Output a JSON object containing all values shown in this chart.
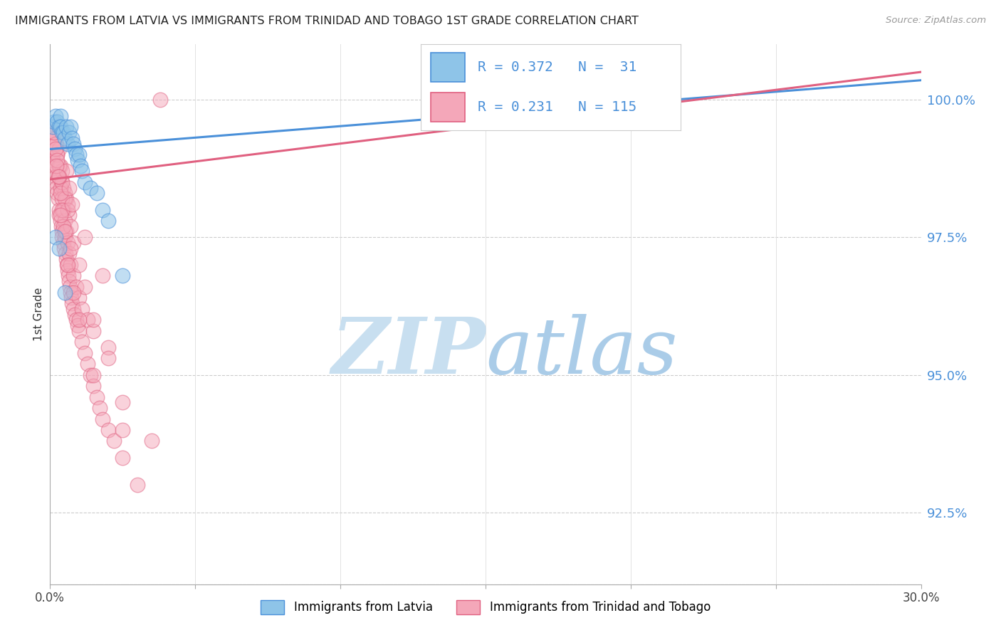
{
  "title": "IMMIGRANTS FROM LATVIA VS IMMIGRANTS FROM TRINIDAD AND TOBAGO 1ST GRADE CORRELATION CHART",
  "source": "Source: ZipAtlas.com",
  "ylabel": "1st Grade",
  "ylabel_values": [
    92.5,
    95.0,
    97.5,
    100.0
  ],
  "xmin": 0.0,
  "xmax": 30.0,
  "ymin": 91.2,
  "ymax": 101.0,
  "legend_label1": "Immigrants from Latvia",
  "legend_label2": "Immigrants from Trinidad and Tobago",
  "R1": 0.372,
  "N1": 31,
  "R2": 0.231,
  "N2": 115,
  "color_blue": "#8ec4e8",
  "color_pink": "#f4a7b9",
  "color_blue_line": "#4a90d9",
  "color_pink_line": "#e06080",
  "color_blue_text": "#4a90d9",
  "watermark_zip_color": "#c8dff0",
  "watermark_atlas_color": "#aacce8",
  "lv_line_x0": 0.0,
  "lv_line_y0": 99.1,
  "lv_line_x1": 30.0,
  "lv_line_y1": 100.35,
  "tt_line_x0": 0.0,
  "tt_line_y0": 98.55,
  "tt_line_x1": 30.0,
  "tt_line_y1": 100.5,
  "latvia_x": [
    0.1,
    0.15,
    0.2,
    0.25,
    0.3,
    0.35,
    0.35,
    0.4,
    0.45,
    0.5,
    0.55,
    0.6,
    0.65,
    0.7,
    0.75,
    0.8,
    0.85,
    0.9,
    0.95,
    1.0,
    1.05,
    1.1,
    1.2,
    1.4,
    1.6,
    1.8,
    2.0,
    2.5,
    0.2,
    0.3,
    0.5
  ],
  "latvia_y": [
    99.5,
    99.6,
    99.7,
    99.6,
    99.5,
    99.7,
    99.5,
    99.4,
    99.4,
    99.3,
    99.5,
    99.2,
    99.4,
    99.5,
    99.3,
    99.2,
    99.1,
    99.0,
    98.9,
    99.0,
    98.8,
    98.7,
    98.5,
    98.4,
    98.3,
    98.0,
    97.8,
    96.8,
    97.5,
    97.3,
    96.5
  ],
  "tt_x": [
    0.05,
    0.08,
    0.1,
    0.12,
    0.12,
    0.15,
    0.15,
    0.18,
    0.2,
    0.2,
    0.22,
    0.22,
    0.25,
    0.25,
    0.28,
    0.3,
    0.3,
    0.32,
    0.35,
    0.35,
    0.38,
    0.4,
    0.4,
    0.42,
    0.42,
    0.45,
    0.45,
    0.48,
    0.5,
    0.5,
    0.52,
    0.55,
    0.55,
    0.58,
    0.6,
    0.6,
    0.62,
    0.65,
    0.65,
    0.68,
    0.7,
    0.72,
    0.75,
    0.8,
    0.85,
    0.9,
    0.95,
    1.0,
    1.1,
    1.2,
    1.3,
    1.4,
    1.5,
    1.6,
    1.7,
    1.8,
    2.0,
    2.2,
    2.5,
    3.0,
    0.3,
    0.35,
    0.4,
    0.45,
    0.5,
    0.55,
    0.6,
    0.65,
    0.7,
    0.8,
    0.9,
    1.0,
    1.1,
    1.3,
    1.5,
    2.0,
    0.2,
    0.25,
    0.3,
    0.4,
    0.5,
    0.6,
    0.7,
    0.8,
    1.0,
    1.2,
    1.5,
    2.0,
    2.5,
    0.15,
    0.2,
    0.25,
    0.3,
    0.35,
    0.4,
    0.45,
    0.6,
    0.8,
    1.0,
    1.5,
    2.5,
    0.55,
    0.65,
    0.75,
    1.2,
    1.8,
    3.5,
    0.35,
    0.5,
    0.7,
    3.8,
    0.22,
    0.28
  ],
  "tt_y": [
    99.3,
    99.0,
    98.9,
    98.7,
    99.5,
    98.8,
    99.4,
    98.6,
    98.5,
    99.3,
    98.4,
    99.2,
    98.3,
    99.0,
    98.2,
    98.0,
    99.1,
    97.9,
    97.8,
    98.8,
    97.7,
    97.6,
    98.7,
    97.5,
    98.5,
    97.4,
    98.4,
    97.3,
    97.5,
    98.3,
    97.2,
    97.1,
    98.2,
    97.0,
    96.9,
    98.1,
    96.8,
    96.7,
    97.9,
    96.6,
    96.5,
    96.4,
    96.3,
    96.2,
    96.1,
    96.0,
    95.9,
    95.8,
    95.6,
    95.4,
    95.2,
    95.0,
    94.8,
    94.6,
    94.4,
    94.2,
    94.0,
    93.8,
    93.5,
    93.0,
    98.6,
    98.4,
    98.2,
    98.0,
    97.8,
    97.6,
    97.4,
    97.2,
    97.0,
    96.8,
    96.6,
    96.4,
    96.2,
    96.0,
    95.8,
    95.5,
    99.2,
    99.0,
    98.8,
    98.5,
    98.2,
    98.0,
    97.7,
    97.4,
    97.0,
    96.6,
    96.0,
    95.3,
    94.5,
    99.4,
    99.1,
    98.9,
    98.6,
    98.3,
    98.0,
    97.7,
    97.0,
    96.5,
    96.0,
    95.0,
    94.0,
    98.7,
    98.4,
    98.1,
    97.5,
    96.8,
    93.8,
    97.9,
    97.6,
    97.3,
    100.0,
    98.8,
    98.6
  ]
}
